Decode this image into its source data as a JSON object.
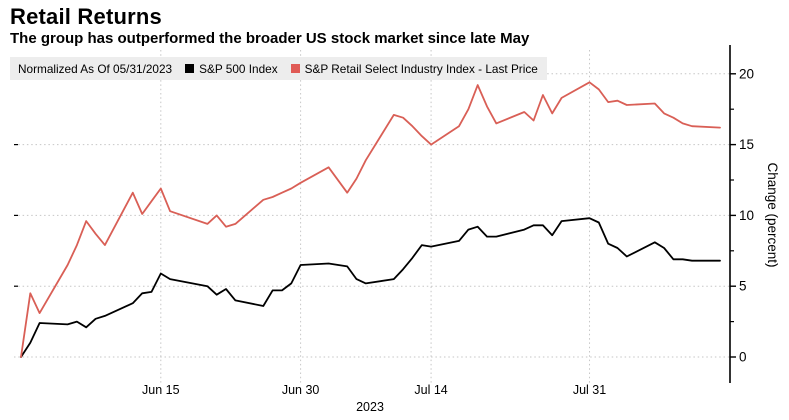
{
  "header": {
    "title": "Retail Returns",
    "subtitle": "The group has outperformed the broader US stock market since late May"
  },
  "legend": {
    "note": "Normalized As Of 05/31/2023",
    "items": [
      {
        "label": "S&P 500 Index",
        "color": "#000000"
      },
      {
        "label": "S&P Retail Select Industry Index - Last Price",
        "color": "#e05a55"
      }
    ]
  },
  "axes": {
    "y_title": "Change (percent)",
    "y_ticks": [
      0,
      5,
      10,
      15,
      20
    ],
    "y_minor_ticks": [
      2.5,
      7.5,
      12.5,
      17.5
    ],
    "x_ticks": [
      {
        "date": "2023-06-15",
        "label": "Jun 15"
      },
      {
        "date": "2023-06-30",
        "label": "Jun 30"
      },
      {
        "date": "2023-07-14",
        "label": "Jul 14"
      },
      {
        "date": "2023-07-31",
        "label": "Jul 31"
      }
    ],
    "x_year_label": "2023"
  },
  "colors": {
    "background": "#ffffff",
    "grid": "#c6c6c6",
    "axis": "#000000",
    "legend_bg": "#ededed",
    "sp500_line": "#000000",
    "retail_line": "#d95f56"
  },
  "chart_data": {
    "type": "line",
    "title": "Retail Returns",
    "xlabel": "2023",
    "ylabel": "Change (percent)",
    "ylim": [
      -1.8,
      21.7
    ],
    "grid": true,
    "legend_position": "top",
    "normalized_as_of": "05/31/2023",
    "x": [
      "2023-05-31",
      "2023-06-01",
      "2023-06-02",
      "2023-06-05",
      "2023-06-06",
      "2023-06-07",
      "2023-06-08",
      "2023-06-09",
      "2023-06-12",
      "2023-06-13",
      "2023-06-14",
      "2023-06-15",
      "2023-06-16",
      "2023-06-20",
      "2023-06-21",
      "2023-06-22",
      "2023-06-23",
      "2023-06-26",
      "2023-06-27",
      "2023-06-28",
      "2023-06-29",
      "2023-06-30",
      "2023-07-03",
      "2023-07-05",
      "2023-07-06",
      "2023-07-07",
      "2023-07-10",
      "2023-07-11",
      "2023-07-12",
      "2023-07-13",
      "2023-07-14",
      "2023-07-17",
      "2023-07-18",
      "2023-07-19",
      "2023-07-20",
      "2023-07-21",
      "2023-07-24",
      "2023-07-25",
      "2023-07-26",
      "2023-07-27",
      "2023-07-28",
      "2023-07-31",
      "2023-08-01",
      "2023-08-02",
      "2023-08-03",
      "2023-08-04",
      "2023-08-07",
      "2023-08-08",
      "2023-08-09",
      "2023-08-10",
      "2023-08-11",
      "2023-08-14"
    ],
    "series": [
      {
        "name": "S&P 500 Index",
        "color": "#000000",
        "values": [
          0,
          1.0,
          2.4,
          2.3,
          2.5,
          2.1,
          2.7,
          2.9,
          3.8,
          4.5,
          4.6,
          5.9,
          5.5,
          5.0,
          4.4,
          4.8,
          4.0,
          3.6,
          4.7,
          4.7,
          5.2,
          6.5,
          6.6,
          6.4,
          5.5,
          5.2,
          5.5,
          6.2,
          7.0,
          7.9,
          7.8,
          8.2,
          9.0,
          9.2,
          8.5,
          8.5,
          9.0,
          9.3,
          9.3,
          8.6,
          9.6,
          9.8,
          9.5,
          8.0,
          7.7,
          7.1,
          8.1,
          7.7,
          6.9,
          6.9,
          6.8,
          6.8
        ]
      },
      {
        "name": "S&P Retail Select Industry Index - Last Price",
        "color": "#d95f56",
        "values": [
          0,
          4.5,
          3.1,
          6.5,
          7.9,
          9.6,
          8.7,
          7.9,
          11.6,
          10.1,
          11.0,
          11.9,
          10.3,
          9.4,
          10.0,
          9.2,
          9.4,
          11.1,
          11.3,
          11.6,
          11.9,
          12.3,
          13.4,
          11.6,
          12.6,
          13.9,
          17.1,
          16.9,
          16.3,
          15.6,
          15.0,
          16.3,
          17.5,
          19.2,
          17.7,
          16.5,
          17.3,
          16.7,
          18.5,
          17.2,
          18.3,
          19.4,
          18.9,
          18.0,
          18.1,
          17.8,
          17.9,
          17.2,
          16.9,
          16.5,
          16.3,
          16.2
        ]
      }
    ]
  }
}
